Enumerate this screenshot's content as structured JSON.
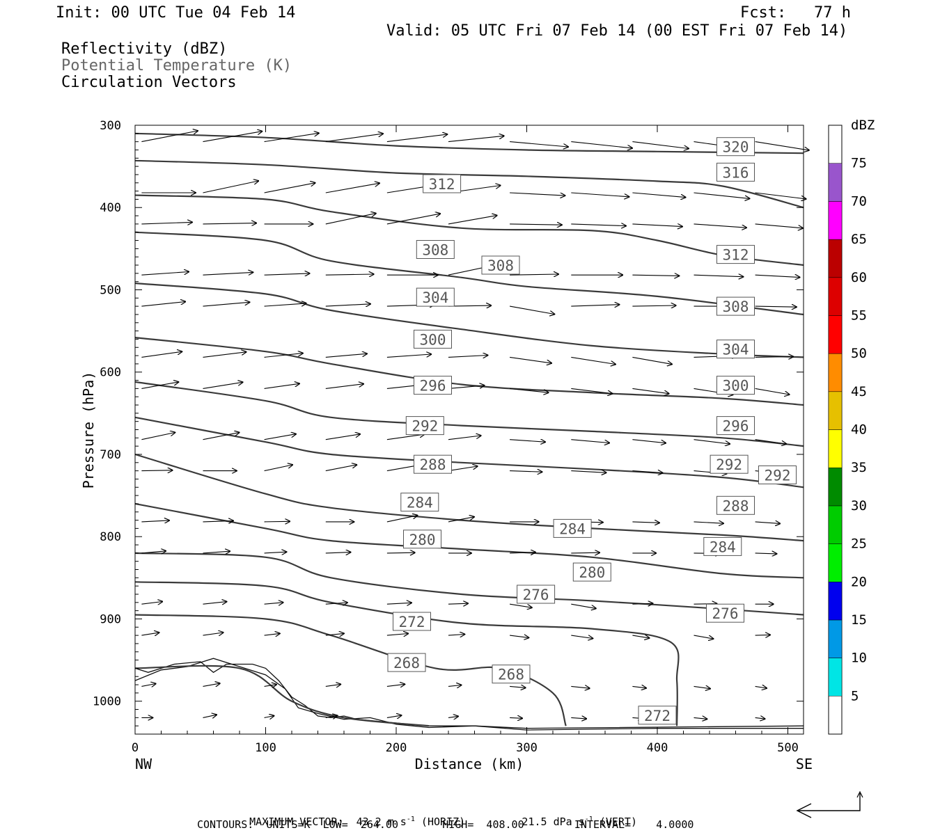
{
  "header": {
    "init": "Init: 00 UTC Tue 04 Feb 14",
    "fcst": "Fcst:   77 h",
    "valid": "Valid: 05 UTC Fri 07 Feb 14 (00 EST Fri 07 Feb 14)",
    "field1": "Reflectivity (dBZ)",
    "field2": "Potential Temperature (K)",
    "field3": "Circulation Vectors"
  },
  "chart_data": {
    "type": "cross-section",
    "xlabel": "Distance (km)",
    "ylabel": "Pressure (hPa)",
    "xlim": [
      0,
      512
    ],
    "ylim": [
      1040,
      300
    ],
    "x_ticks": [
      "0",
      "100",
      "200",
      "300",
      "400",
      "500"
    ],
    "y_ticks": [
      "300",
      "400",
      "500",
      "600",
      "700",
      "800",
      "900",
      "1000"
    ],
    "x_left_label": "NW",
    "x_right_label": "SE",
    "colorbar": {
      "title": "dBZ",
      "levels": [
        "5",
        "10",
        "15",
        "20",
        "25",
        "30",
        "35",
        "40",
        "45",
        "50",
        "55",
        "60",
        "65",
        "70",
        "75"
      ],
      "colors": [
        "#00e5e5",
        "#0099e6",
        "#0000ee",
        "#00ee00",
        "#00cc00",
        "#008b00",
        "#ffff00",
        "#e6c000",
        "#ff8c00",
        "#ff0000",
        "#dd0000",
        "#bb0000",
        "#ff00ff",
        "#9955cc"
      ]
    },
    "theta_contours": [
      {
        "value": 320,
        "points": [
          [
            0,
            310
          ],
          [
            100,
            315
          ],
          [
            200,
            325
          ],
          [
            300,
            330
          ],
          [
            400,
            332
          ],
          [
            512,
            334
          ]
        ]
      },
      {
        "value": 316,
        "points": [
          [
            0,
            343
          ],
          [
            100,
            348
          ],
          [
            200,
            358
          ],
          [
            300,
            362
          ],
          [
            400,
            368
          ],
          [
            450,
            374
          ],
          [
            512,
            400
          ]
        ]
      },
      {
        "value": 312,
        "points": [
          [
            0,
            385
          ],
          [
            100,
            390
          ],
          [
            150,
            405
          ],
          [
            250,
            425
          ],
          [
            350,
            428
          ],
          [
            400,
            440
          ],
          [
            450,
            458
          ],
          [
            512,
            470
          ]
        ]
      },
      {
        "value": 308,
        "points": [
          [
            0,
            430
          ],
          [
            100,
            440
          ],
          [
            150,
            465
          ],
          [
            250,
            485
          ],
          [
            300,
            496
          ],
          [
            400,
            508
          ],
          [
            512,
            530
          ]
        ]
      },
      {
        "value": 304,
        "points": [
          [
            0,
            492
          ],
          [
            100,
            505
          ],
          [
            150,
            525
          ],
          [
            250,
            548
          ],
          [
            350,
            568
          ],
          [
            450,
            578
          ],
          [
            512,
            582
          ]
        ]
      },
      {
        "value": 300,
        "points": [
          [
            0,
            558
          ],
          [
            100,
            575
          ],
          [
            150,
            590
          ],
          [
            250,
            615
          ],
          [
            350,
            625
          ],
          [
            450,
            632
          ],
          [
            512,
            640
          ]
        ]
      },
      {
        "value": 296,
        "points": [
          [
            0,
            612
          ],
          [
            100,
            635
          ],
          [
            150,
            655
          ],
          [
            250,
            665
          ],
          [
            350,
            672
          ],
          [
            450,
            680
          ],
          [
            512,
            690
          ]
        ]
      },
      {
        "value": 292,
        "points": [
          [
            0,
            655
          ],
          [
            100,
            685
          ],
          [
            150,
            700
          ],
          [
            250,
            710
          ],
          [
            350,
            718
          ],
          [
            450,
            728
          ],
          [
            512,
            740
          ]
        ]
      },
      {
        "value": 288,
        "points": [
          [
            0,
            700
          ],
          [
            100,
            748
          ],
          [
            150,
            765
          ],
          [
            250,
            780
          ],
          [
            350,
            790
          ],
          [
            450,
            798
          ],
          [
            512,
            805
          ]
        ]
      },
      {
        "value": 284,
        "points": [
          [
            0,
            760
          ],
          [
            100,
            790
          ],
          [
            150,
            805
          ],
          [
            250,
            815
          ],
          [
            350,
            825
          ],
          [
            450,
            845
          ],
          [
            512,
            850
          ]
        ]
      },
      {
        "value": 280,
        "points": [
          [
            0,
            820
          ],
          [
            100,
            825
          ],
          [
            150,
            850
          ],
          [
            250,
            870
          ],
          [
            350,
            878
          ],
          [
            450,
            888
          ],
          [
            512,
            895
          ]
        ]
      },
      {
        "value": 276,
        "points": [
          [
            0,
            855
          ],
          [
            100,
            860
          ],
          [
            150,
            880
          ],
          [
            250,
            905
          ],
          [
            350,
            912
          ],
          [
            410,
            928
          ],
          [
            415,
            975
          ],
          [
            415,
            1030
          ]
        ]
      },
      {
        "value": 272,
        "points": [
          [
            0,
            895
          ],
          [
            100,
            900
          ],
          [
            150,
            920
          ],
          [
            230,
            960
          ],
          [
            280,
            960
          ],
          [
            320,
            990
          ],
          [
            330,
            1030
          ]
        ]
      },
      {
        "value": 268,
        "points": [
          [
            0,
            960
          ],
          [
            80,
            960
          ],
          [
            120,
            1000
          ],
          [
            160,
            1020
          ],
          [
            225,
            1030
          ]
        ]
      }
    ],
    "contour_labels": [
      {
        "text": "320",
        "x": 460,
        "p": 326
      },
      {
        "text": "312",
        "x": 235,
        "p": 371
      },
      {
        "text": "316",
        "x": 460,
        "p": 357
      },
      {
        "text": "308",
        "x": 230,
        "p": 451
      },
      {
        "text": "308",
        "x": 280,
        "p": 470
      },
      {
        "text": "312",
        "x": 460,
        "p": 457
      },
      {
        "text": "304",
        "x": 230,
        "p": 509
      },
      {
        "text": "308",
        "x": 460,
        "p": 520
      },
      {
        "text": "300",
        "x": 228,
        "p": 560
      },
      {
        "text": "304",
        "x": 460,
        "p": 572
      },
      {
        "text": "296",
        "x": 228,
        "p": 616
      },
      {
        "text": "300",
        "x": 460,
        "p": 616
      },
      {
        "text": "292",
        "x": 222,
        "p": 665
      },
      {
        "text": "296",
        "x": 460,
        "p": 665
      },
      {
        "text": "288",
        "x": 228,
        "p": 712
      },
      {
        "text": "292",
        "x": 455,
        "p": 712
      },
      {
        "text": "292",
        "x": 492,
        "p": 725
      },
      {
        "text": "284",
        "x": 218,
        "p": 758
      },
      {
        "text": "288",
        "x": 460,
        "p": 762
      },
      {
        "text": "284",
        "x": 335,
        "p": 790
      },
      {
        "text": "280",
        "x": 220,
        "p": 803
      },
      {
        "text": "284",
        "x": 450,
        "p": 812
      },
      {
        "text": "280",
        "x": 350,
        "p": 843
      },
      {
        "text": "276",
        "x": 307,
        "p": 870
      },
      {
        "text": "276",
        "x": 452,
        "p": 893
      },
      {
        "text": "272",
        "x": 212,
        "p": 903
      },
      {
        "text": "268",
        "x": 208,
        "p": 953
      },
      {
        "text": "268",
        "x": 288,
        "p": 967
      },
      {
        "text": "272",
        "x": 400,
        "p": 1017
      }
    ],
    "ground_terrain": [
      [
        0,
        960
      ],
      [
        10,
        965
      ],
      [
        30,
        955
      ],
      [
        50,
        952
      ],
      [
        60,
        965
      ],
      [
        70,
        955
      ],
      [
        90,
        955
      ],
      [
        100,
        960
      ],
      [
        110,
        975
      ],
      [
        120,
        995
      ],
      [
        130,
        1005
      ],
      [
        140,
        1018
      ],
      [
        150,
        1020
      ],
      [
        160,
        1018
      ],
      [
        170,
        1022
      ],
      [
        190,
        1025
      ],
      [
        210,
        1028
      ],
      [
        225,
        1030
      ],
      [
        260,
        1030
      ],
      [
        300,
        1033
      ],
      [
        512,
        1030
      ]
    ],
    "ground_terrain2": [
      [
        0,
        975
      ],
      [
        20,
        962
      ],
      [
        40,
        958
      ],
      [
        60,
        948
      ],
      [
        80,
        958
      ],
      [
        100,
        968
      ],
      [
        115,
        985
      ],
      [
        125,
        1008
      ],
      [
        140,
        1015
      ],
      [
        160,
        1022
      ],
      [
        180,
        1020
      ],
      [
        200,
        1028
      ],
      [
        225,
        1032
      ],
      [
        260,
        1030
      ],
      [
        300,
        1035
      ],
      [
        400,
        1033
      ],
      [
        512,
        1033
      ]
    ],
    "maximum_vector_label": "MAXIMUM VECTOR:",
    "maximum_vector_horiz": "43.2 m s",
    "maximum_vector_horiz_unit": "(HORIZ)",
    "maximum_vector_vert": "21.5 dPa s",
    "maximum_vector_vert_unit": "(VERT)",
    "exp": "-1",
    "contours_line": "CONTOURS:  UNITS=K  LOW=  264.00       HIGH=  408.00        INTERVAL=    4.0000"
  }
}
